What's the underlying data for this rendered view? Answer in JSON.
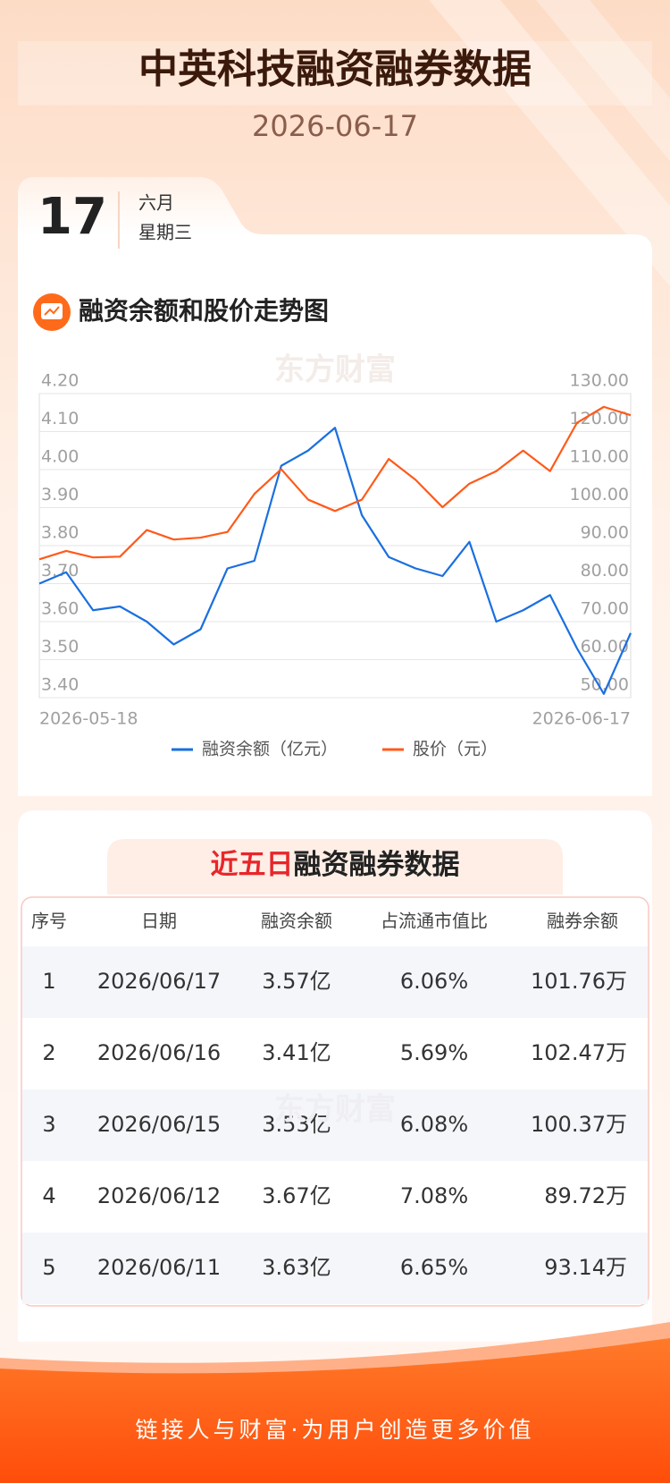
{
  "header": {
    "title": "中英科技融资融券数据",
    "date": "2026-06-17"
  },
  "date_tab": {
    "day": "17",
    "month": "六月",
    "weekday": "星期三"
  },
  "chart_section_title": "融资余额和股价走势图",
  "watermark": "东方财富",
  "chart_data": {
    "type": "line",
    "categories": [
      "2026-05-18",
      null,
      null,
      null,
      null,
      null,
      null,
      null,
      null,
      null,
      null,
      null,
      null,
      null,
      null,
      null,
      null,
      null,
      null,
      null,
      null,
      null,
      "2026-06-17"
    ],
    "series": [
      {
        "name": "融资余额（亿元）",
        "color": "#1a6fdf",
        "values": [
          3.7,
          3.73,
          3.63,
          3.64,
          3.6,
          3.54,
          3.58,
          3.74,
          3.76,
          4.01,
          4.05,
          4.11,
          3.88,
          3.77,
          3.74,
          3.72,
          3.81,
          3.6,
          3.63,
          3.67,
          3.53,
          3.41,
          3.57
        ]
      },
      {
        "name": "股价（元）",
        "color": "#ff5a1a",
        "axis": "y2",
        "values": [
          86.4,
          88.6,
          86.9,
          87.1,
          94.1,
          91.6,
          92.1,
          93.6,
          103.6,
          110.1,
          102.1,
          99.1,
          102.1,
          112.8,
          107.3,
          100.1,
          106.3,
          109.6,
          115.0,
          109.6,
          122.3,
          126.5,
          124.3
        ]
      }
    ],
    "ylim": [
      3.4,
      4.2
    ],
    "yticks": [
      {
        "value": 3.4,
        "label": "3.40"
      },
      {
        "value": 3.5,
        "label": "3.50"
      },
      {
        "value": 3.6,
        "label": "3.60"
      },
      {
        "value": 3.7,
        "label": "3.70"
      },
      {
        "value": 3.8,
        "label": "3.80"
      },
      {
        "value": 3.9,
        "label": "3.90"
      },
      {
        "value": 4.0,
        "label": "4.00"
      },
      {
        "value": 4.1,
        "label": "4.10"
      },
      {
        "value": 4.2,
        "label": "4.20"
      }
    ],
    "y2lim": [
      50,
      130
    ],
    "y2ticks": [
      {
        "value": 50,
        "label": "50.00"
      },
      {
        "value": 60,
        "label": "60.00"
      },
      {
        "value": 70,
        "label": "70.00"
      },
      {
        "value": 80,
        "label": "80.00"
      },
      {
        "value": 90,
        "label": "90.00"
      },
      {
        "value": 100,
        "label": "100.00"
      },
      {
        "value": 110,
        "label": "110.00"
      },
      {
        "value": 120,
        "label": "120.00"
      },
      {
        "value": 130,
        "label": "130.00"
      }
    ],
    "grid": true,
    "legend": "bottom"
  },
  "table": {
    "title_highlight": "近五日",
    "title_rest": "融资融券数据",
    "columns": [
      "序号",
      "日期",
      "融资余额",
      "占流通市值比",
      "融券余额"
    ],
    "rows": [
      [
        "1",
        "2026/06/17",
        "3.57亿",
        "6.06%",
        "101.76万"
      ],
      [
        "2",
        "2026/06/16",
        "3.41亿",
        "5.69%",
        "102.47万"
      ],
      [
        "3",
        "2026/06/15",
        "3.53亿",
        "6.08%",
        "100.37万"
      ],
      [
        "4",
        "2026/06/12",
        "3.67亿",
        "7.08%",
        "89.72万"
      ],
      [
        "5",
        "2026/06/11",
        "3.63亿",
        "6.65%",
        "93.14万"
      ]
    ]
  },
  "footer": "链接人与财富·为用户创造更多价值"
}
